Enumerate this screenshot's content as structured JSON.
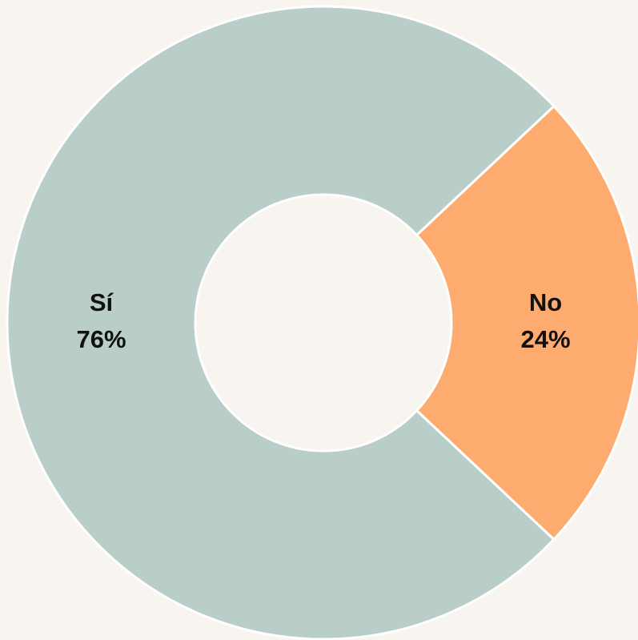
{
  "chart_data": {
    "type": "donut",
    "categories": [
      "Sí",
      "No"
    ],
    "values": [
      76,
      24
    ],
    "value_labels": [
      "76%",
      "24%"
    ],
    "colors": [
      "#b9cdc9",
      "#fdab6f"
    ]
  }
}
